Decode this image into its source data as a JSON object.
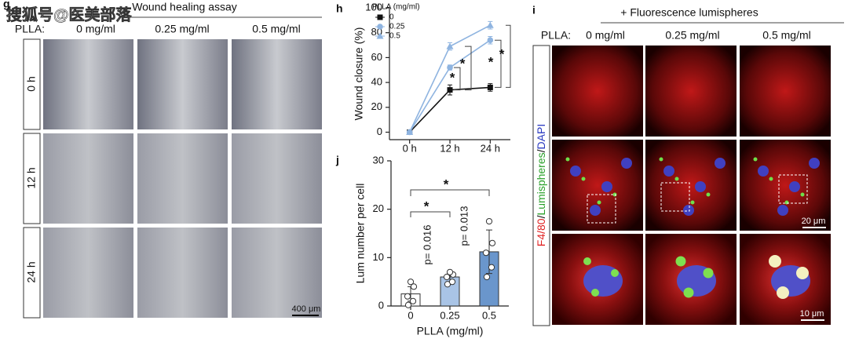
{
  "watermark": "搜狐号@医美部落",
  "panel_g": {
    "letter": "g",
    "title": "Wound healing assay",
    "plla_label": "PLLA:",
    "columns": [
      "0 mg/ml",
      "0.25 mg/ml",
      "0.5 mg/ml"
    ],
    "rows": [
      "0 h",
      "12 h",
      "24 h"
    ],
    "scale_bar": "400 μm"
  },
  "panel_i": {
    "letter": "i",
    "title": "+ Fluorescence lumispheres",
    "plla_label": "PLLA:",
    "columns": [
      "0 mg/ml",
      "0.25 mg/ml",
      "0.5 mg/ml"
    ],
    "side_label": [
      {
        "text": "F4/80",
        "color": "#e02020"
      },
      {
        "text": "/",
        "color": "#111111"
      },
      {
        "text": "Lumispheres",
        "color": "#2aa02a"
      },
      {
        "text": "/",
        "color": "#111111"
      },
      {
        "text": "DAPI",
        "color": "#2a3ac0"
      }
    ],
    "scale_bars": [
      "20 μm",
      "10 μm"
    ]
  },
  "chart_data": [
    {
      "type": "line",
      "letter": "h",
      "ylabel": "Wound closure (%)",
      "legend_title": "PLLA (mg/ml)",
      "categories": [
        "0 h",
        "12 h",
        "24 h"
      ],
      "series": [
        {
          "name": "0",
          "color": "#111111",
          "marker": "square",
          "values": [
            0,
            34,
            36
          ],
          "errors": [
            0,
            4,
            3
          ]
        },
        {
          "name": "0.25",
          "color": "#8fb4e0",
          "marker": "circle",
          "values": [
            0,
            52,
            74
          ],
          "errors": [
            0,
            2,
            3
          ]
        },
        {
          "name": "0.5",
          "color": "#8fb4e0",
          "marker": "triangle",
          "values": [
            0,
            69,
            86
          ],
          "errors": [
            0,
            3,
            3
          ]
        }
      ],
      "ylim": [
        -6,
        100
      ],
      "yticks": [
        0,
        20,
        40,
        60,
        80,
        100
      ],
      "annotations": [
        "*",
        "*",
        "*",
        "*"
      ]
    },
    {
      "type": "bar",
      "letter": "j",
      "ylabel": "Lum number per cell",
      "xlabel": "PLLA (mg/ml)",
      "categories": [
        "0",
        "0.25",
        "0.5"
      ],
      "values": [
        2.5,
        6,
        11.2
      ],
      "errors": [
        1.5,
        1,
        4.5
      ],
      "colors": [
        "#ffffff",
        "#a9c4e6",
        "#6a96cc"
      ],
      "points": [
        [
          0.2,
          1,
          2,
          4,
          5
        ],
        [
          4.5,
          5,
          6,
          6.5,
          7
        ],
        [
          6,
          8,
          11,
          13,
          17.5
        ]
      ],
      "ylim": [
        0,
        30
      ],
      "yticks": [
        0,
        10,
        20,
        30
      ],
      "annotations": [
        "*",
        "p= 0.016",
        "*",
        "p= 0.013"
      ]
    }
  ]
}
